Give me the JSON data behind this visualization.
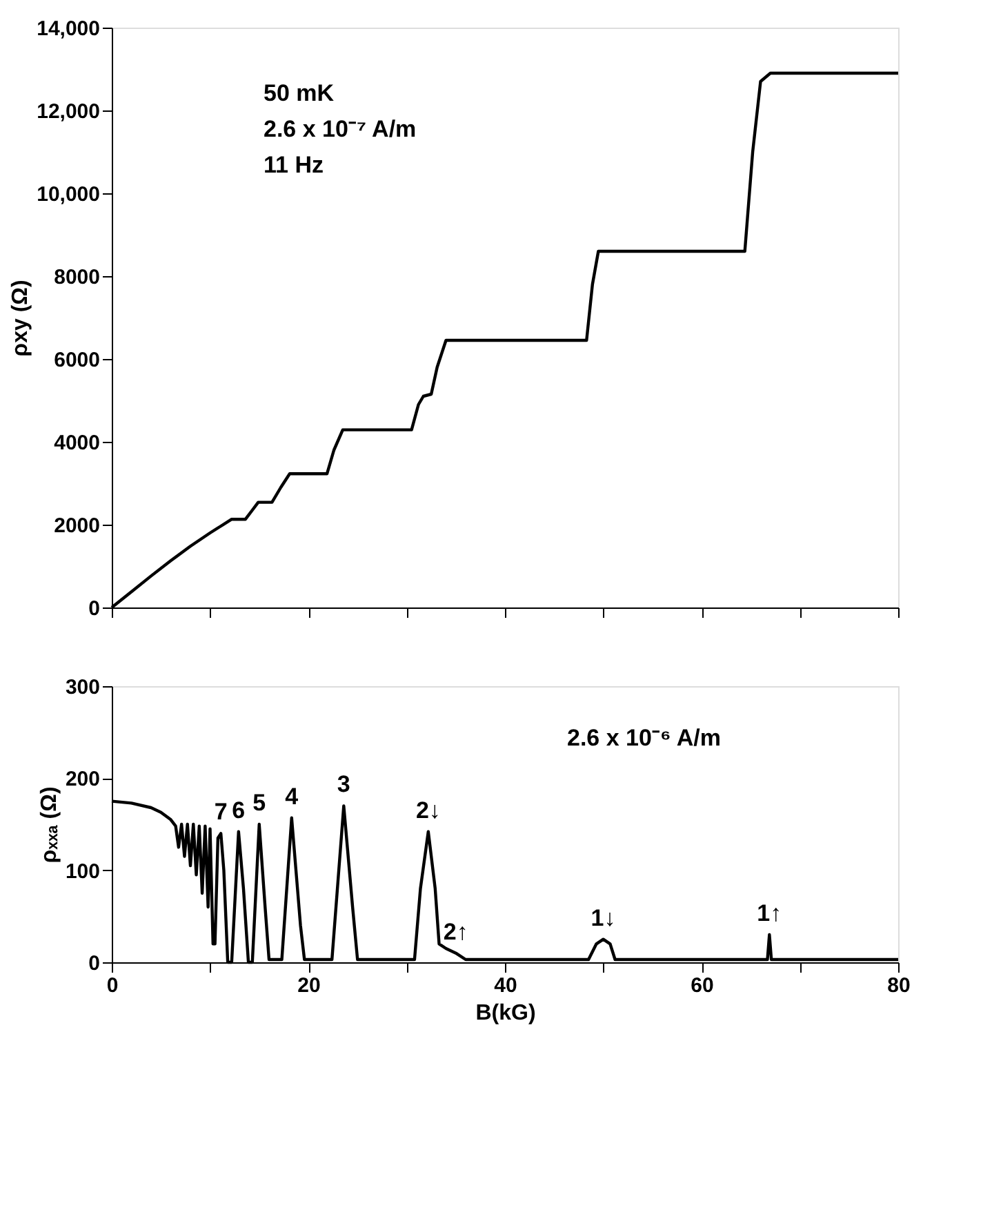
{
  "chart_data": [
    {
      "type": "line",
      "ylabel": "ρxy (Ω)",
      "x": [
        0,
        2,
        4,
        6,
        8,
        10,
        11,
        12.2,
        13.6,
        14.3,
        14.9,
        16.3,
        17.2,
        18.1,
        21.9,
        22.6,
        23.5,
        30.5,
        31.2,
        31.7,
        32.5,
        33.1,
        34,
        48.3,
        48.9,
        49.5,
        64.4,
        65.2,
        66,
        67,
        80
      ],
      "series": [
        {
          "color": "#000000",
          "values": [
            0,
            380,
            760,
            1130,
            1480,
            1800,
            1950,
            2130,
            2130,
            2350,
            2540,
            2540,
            2900,
            3230,
            3230,
            3800,
            4290,
            4290,
            4900,
            5100,
            5150,
            5800,
            6450,
            6450,
            7800,
            8600,
            8600,
            11000,
            12700,
            12900,
            12900
          ]
        }
      ],
      "xlim": [
        0,
        80
      ],
      "xticks": [
        0,
        10,
        20,
        30,
        40,
        50,
        60,
        70,
        80
      ],
      "ylim": [
        0,
        14000
      ],
      "yticks": [
        0,
        2000,
        4000,
        6000,
        8000,
        {
          "value": 10000,
          "label": "10,000"
        },
        {
          "value": 12000,
          "label": "12,000"
        },
        {
          "value": 14000,
          "label": "14,000"
        }
      ],
      "tick_labels": "y",
      "grid": false,
      "line_style": "solid",
      "marker": "none",
      "annotations": [
        "50 mK",
        "2.6 x 10⁻⁷ A/m",
        "11 Hz"
      ]
    },
    {
      "type": "line",
      "ylabel": "ρₓₓₐ (Ω)",
      "xlabel": "B(kG)",
      "x": [
        0,
        2,
        4,
        5,
        6,
        6.5,
        6.8,
        7.1,
        7.4,
        7.7,
        8.0,
        8.3,
        8.6,
        8.9,
        9.2,
        9.5,
        9.8,
        10.0,
        10.3,
        10.5,
        10.8,
        11.1,
        11.4,
        11.8,
        12.2,
        12.9,
        13.4,
        13.9,
        14.3,
        15.0,
        15.6,
        16.0,
        17.3,
        18.3,
        19.2,
        19.6,
        22.4,
        23.6,
        24.5,
        25.0,
        30.8,
        31.4,
        32.2,
        32.9,
        33.3,
        34.0,
        35.0,
        36.0,
        48.5,
        49.3,
        50,
        50.7,
        51.2,
        66.7,
        66.9,
        67.1,
        80
      ],
      "series": [
        {
          "color": "#000000",
          "values": [
            175,
            173,
            168,
            163,
            155,
            148,
            125,
            150,
            115,
            150,
            105,
            150,
            95,
            148,
            75,
            148,
            60,
            145,
            20,
            20,
            135,
            140,
            100,
            0,
            0,
            142,
            80,
            0,
            0,
            150,
            60,
            3,
            3,
            157,
            40,
            3,
            3,
            170,
            60,
            3,
            3,
            80,
            142,
            80,
            20,
            15,
            10,
            3,
            3,
            20,
            25,
            20,
            3,
            3,
            30,
            3,
            3
          ]
        }
      ],
      "xlim": [
        0,
        80
      ],
      "xticks": [
        0,
        {
          "value": 10,
          "label": null
        },
        20,
        {
          "value": 30,
          "label": null
        },
        40,
        {
          "value": 50,
          "label": null
        },
        60,
        {
          "value": 70,
          "label": null
        },
        80
      ],
      "ylim": [
        0,
        300
      ],
      "yticks": [
        0,
        100,
        200,
        300
      ],
      "grid": false,
      "line_style": "solid",
      "marker": "none",
      "annotations": [
        "2.6 x 10⁻⁶ A/m",
        {
          "text": "7",
          "x": 11.1,
          "y": 140
        },
        {
          "text": "6",
          "x": 12.9,
          "y": 142
        },
        {
          "text": "5",
          "x": 15.0,
          "y": 150
        },
        {
          "text": "4",
          "x": 18.3,
          "y": 157
        },
        {
          "text": "3",
          "x": 23.6,
          "y": 170
        },
        {
          "text": "2↓",
          "x": 32.2,
          "y": 142
        },
        {
          "text": "2↑",
          "x": 35.0,
          "y": 10
        },
        {
          "text": "1↓",
          "x": 50,
          "y": 25
        },
        {
          "text": "1↑",
          "x": 66.9,
          "y": 30
        }
      ]
    }
  ]
}
